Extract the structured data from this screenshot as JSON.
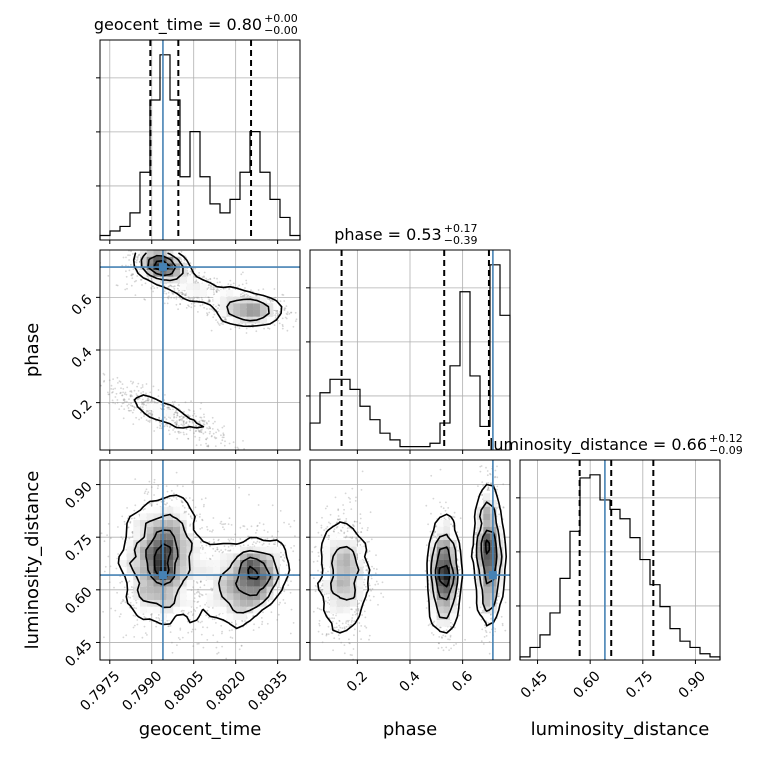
{
  "chart_data": {
    "type": "corner",
    "parameters": [
      "geocent_time",
      "phase",
      "luminosity_distance"
    ],
    "truths": {
      "geocent_time": 0.7994,
      "phase": 0.715,
      "luminosity_distance": 0.642
    },
    "titles": [
      {
        "param": "geocent_time",
        "text": "geocent_time = 0.80",
        "plus": "+0.00",
        "minus": "−0.00"
      },
      {
        "param": "phase",
        "text": "phase = 0.53",
        "plus": "+0.17",
        "minus": "−0.39"
      },
      {
        "param": "luminosity_distance",
        "text": "luminosity_distance = 0.66",
        "plus": "+0.12",
        "minus": "−0.09"
      }
    ],
    "ranges": {
      "geocent_time": [
        0.79715,
        0.8043
      ],
      "phase": [
        0.02,
        0.78
      ],
      "luminosity_distance": [
        0.4,
        0.97
      ]
    },
    "ticks": {
      "geocent_time": [
        "0.7975",
        "0.7990",
        "0.8005",
        "0.8020",
        "0.8035"
      ],
      "phase": [
        "0.2",
        "0.4",
        "0.6"
      ],
      "luminosity_distance": [
        "0.45",
        "0.60",
        "0.75",
        "0.90"
      ]
    },
    "tick_values": {
      "geocent_time": [
        0.7975,
        0.799,
        0.8005,
        0.802,
        0.8035
      ],
      "phase": [
        0.2,
        0.4,
        0.6
      ],
      "luminosity_distance": [
        0.45,
        0.6,
        0.75,
        0.9
      ]
    },
    "quantiles": {
      "geocent_time": [
        0.79895,
        0.79995,
        0.80255
      ],
      "phase": [
        0.14,
        0.53,
        0.7
      ],
      "luminosity_distance": [
        0.57,
        0.66,
        0.78
      ]
    },
    "histograms": {
      "geocent_time": {
        "bins": 20,
        "counts": [
          2,
          4,
          6,
          12,
          30,
          62,
          82,
          62,
          28,
          48,
          28,
          16,
          12,
          18,
          30,
          48,
          30,
          18,
          10,
          2
        ]
      },
      "phase": {
        "bins": 20,
        "counts": [
          16,
          34,
          42,
          42,
          36,
          26,
          18,
          10,
          6,
          2,
          2,
          2,
          4,
          16,
          50,
          94,
          44,
          14,
          110,
          80
        ]
      },
      "luminosity_distance": {
        "bins": 20,
        "counts": [
          2,
          8,
          16,
          30,
          52,
          82,
          116,
          118,
          102,
          96,
          90,
          78,
          64,
          48,
          34,
          20,
          12,
          8,
          4,
          2
        ]
      }
    },
    "grid": true,
    "colors": {
      "truth": "#4682b4",
      "hist": "#000000",
      "contour": "#000000",
      "scatter": "#8a8a8a"
    }
  }
}
